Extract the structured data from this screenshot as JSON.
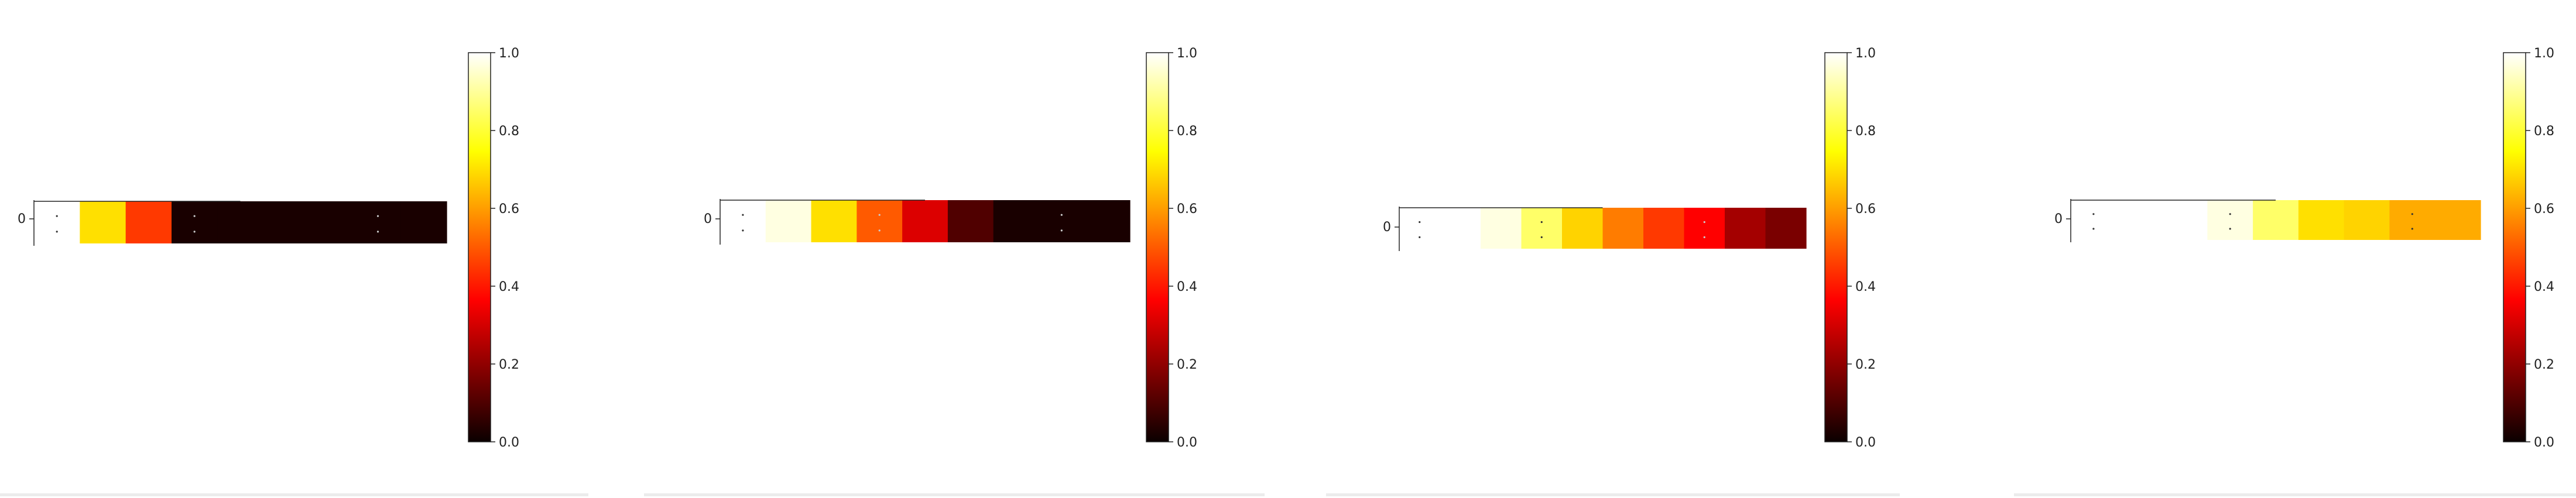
{
  "colors": {
    "colormap": "hot",
    "axis": "#222222",
    "cell_marker": "#555555"
  },
  "chart_data": [
    {
      "type": "heatmap",
      "colormap": "hot",
      "y_ticks": [
        "0"
      ],
      "values": [
        1.0,
        0.7,
        0.45,
        0.02,
        0.02,
        0.02,
        0.02,
        0.02,
        0.02
      ],
      "color_range": [
        0.0,
        1.0
      ],
      "colorbar_ticks": [
        "0.0",
        "0.2",
        "0.4",
        "0.6",
        "0.8",
        "1.0"
      ]
    },
    {
      "type": "heatmap",
      "colormap": "hot",
      "y_ticks": [
        "0"
      ],
      "values": [
        1.0,
        0.97,
        0.7,
        0.5,
        0.3,
        0.1,
        0.02,
        0.02,
        0.02
      ],
      "color_range": [
        0.0,
        1.0
      ],
      "colorbar_ticks": [
        "0.0",
        "0.2",
        "0.4",
        "0.6",
        "0.8",
        "1.0"
      ]
    },
    {
      "type": "heatmap",
      "colormap": "hot",
      "y_ticks": [
        "0"
      ],
      "values": [
        1.0,
        1.0,
        0.97,
        0.85,
        0.68,
        0.55,
        0.45,
        0.35,
        0.22,
        0.16
      ],
      "color_range": [
        0.0,
        1.0
      ],
      "colorbar_ticks": [
        "0.0",
        "0.2",
        "0.4",
        "0.6",
        "0.8",
        "1.0"
      ]
    },
    {
      "type": "heatmap",
      "colormap": "hot",
      "y_ticks": [
        "0"
      ],
      "values": [
        1.0,
        1.0,
        1.0,
        0.97,
        0.85,
        0.7,
        0.68,
        0.62,
        0.62
      ],
      "color_range": [
        0.0,
        1.0
      ],
      "colorbar_ticks": [
        "0.0",
        "0.2",
        "0.4",
        "0.6",
        "0.8",
        "1.0"
      ]
    }
  ]
}
